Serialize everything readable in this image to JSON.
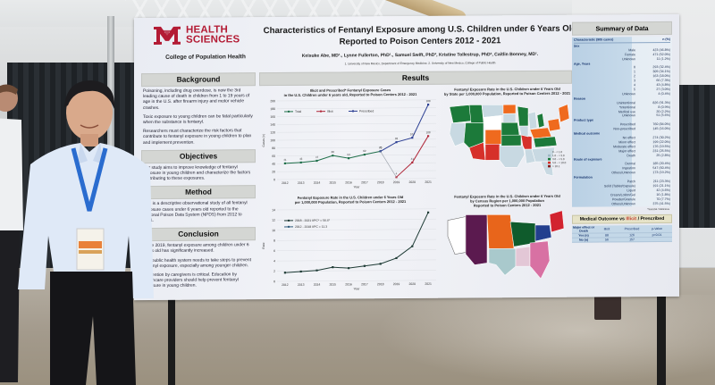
{
  "poster": {
    "institution": {
      "logo_letters": "UNM",
      "name_line1": "HEALTH",
      "name_line2": "SCIENCES",
      "college": "College of Population Health",
      "brand_color": "#b31b34"
    },
    "title_line1": "Characteristics of Fentanyl Exposure among U.S. Children under 6 Years Old",
    "title_line2": "Reported to Poison Centers 2012 - 2021",
    "authors": "Keisuke Abe, MD¹., Lynne Fullerton, PhD¹., Samuel Swift, PhD², Kristine Tollestrup, PhD², Caitlin Bonney, MD¹.",
    "affiliations": "1. University of New Mexico, Department of Emergency Medicine. 2. University of New Mexico, College of Public Health",
    "sections": {
      "background": {
        "heading": "Background",
        "paragraphs": [
          "Poisoning, including drug overdose, is now the 3rd leading cause of death in children from 1 to 19 years of age in the U.S. after firearm injury and motor vehicle crashes.",
          "Toxic exposure to young children can be fatal particularly when the substance is fentanyl.",
          "Researchers must characterize the risk factors that contribute to fentanyl exposure in young children to plan and implement prevention."
        ]
      },
      "objectives": {
        "heading": "Objectives",
        "paragraphs": [
          "Our study aims to improve knowledge of fentanyl exposure in young children and characterize the factors contributing to these exposures."
        ]
      },
      "method": {
        "heading": "Method",
        "paragraphs": [
          "This is a descriptive observational study of all fentanyl exposure cases under 6 years old reported to the National Poison Data System (NPDS) from 2012 to 2021."
        ]
      },
      "conclusion": {
        "heading": "Conclusion",
        "paragraphs": [
          "Since 2019, fentanyl exposure among children under 6 years old has significantly increased.",
          "The public health system needs to take steps to prevent fentanyl exposure, especially among younger children.",
          "Prevention by caregivers is critical. Education by healthcare providers should help prevent fentanyl exposure in young children."
        ]
      },
      "results": {
        "heading": "Results"
      }
    },
    "chart1": {
      "title_line1": "Illicit and Prescribed* Fentanyl Exposure Cases",
      "title_line2": "in the U.S. Children under 6 years old, Reported to Poison Centers 2012 - 2021",
      "footnote": "* Prior to November 2019, NPDS did not distinguish between illicit and prescribed exposures",
      "legend": [
        "Total",
        "Illicit",
        "Prescribed"
      ]
    },
    "chart2": {
      "title_line1": "Fentanyl Exposure Rate in the U.S. Children under 6 Years Old",
      "title_line2": "per 1,000,000 Population, Reported to Poison Centers 2012 - 2021",
      "legend": [
        "2018 - 2021 APC* = 56.4*",
        "2012 - 2018 APC = 11.3"
      ],
      "footnote1": "*APC: Annual Percent Change",
      "footnote2": "* p < 0.05"
    },
    "map1": {
      "title_line1": "Fentanyl Exposure Rate in the U.S. Children under 6 Years Old",
      "title_line2": "by State per 1,000,000 Population, Reported to Poison Centers 2012 - 2021",
      "legend": [
        "0 - < 1.0",
        "1.0 - < 3.0",
        "3.0 - < 5.0",
        "5.0 - < 10.0",
        "> 10.1"
      ],
      "colors": [
        "#c8d9e2",
        "#9fb8c4",
        "#1c7a3a",
        "#ef6a1e",
        "#d6302a"
      ]
    },
    "map2": {
      "title_line1": "Fentanyl Exposure Rate in the U.S. Children under 6 Years Old",
      "title_line2": "by Census Region per 1,000,000 Population",
      "title_line3": "Reported to Poison Centers 2012 - 2021",
      "region_colors": {
        "west": "#5b1a4f",
        "midwest_west": "#e8651b",
        "midwest_east": "#0f5b2c",
        "northeast": "#d2232f",
        "mid_atlantic": "#233f8e",
        "south_central": "#a9c9cc",
        "south_east": "#d871a3",
        "south_mid": "#e3c7d6"
      }
    },
    "summary": {
      "heading": "Summary of Data",
      "col_char": "Characteristic (905 cases)",
      "col_n": "n (%)",
      "groups": [
        {
          "name": "Sex",
          "rows": [
            [
              "Male",
              "423 (46.8%)"
            ],
            [
              "Female",
              "471 (52.0%)"
            ],
            [
              "Unknown",
              "11 (1.2%)"
            ]
          ]
        },
        {
          "name": "Age, Years",
          "rows": [
            [
              "0",
              "293 (32.4%)"
            ],
            [
              "1",
              "309 (34.1%)"
            ],
            [
              "2",
              "163 (18.0%)"
            ],
            [
              "3",
              "66 (7.3%)"
            ],
            [
              "4",
              "43 (4.8%)"
            ],
            [
              "5",
              "27 (3.0%)"
            ],
            [
              "Unknown",
              "4 (0.4%)"
            ]
          ]
        },
        {
          "name": "Reason",
          "rows": [
            [
              "Unintentional",
              "826 (91.3%)"
            ],
            [
              "*Intentional",
              "8 (0.9%)"
            ],
            [
              "Medical use",
              "20 (2.2%)"
            ],
            [
              "Unknown",
              "51 (5.6%)"
            ]
          ]
        },
        {
          "name": "Product type",
          "rows": [
            [
              "Prescribed",
              "760 (84.0%)"
            ],
            [
              "Non-prescribed",
              "145 (16.0%)"
            ]
          ]
        },
        {
          "name": "Medical outcome",
          "rows": [
            [
              "No effect",
              "274 (30.2%)"
            ],
            [
              "Minor effect",
              "199 (22.0%)"
            ],
            [
              "Moderate effect",
              "176 (19.5%)"
            ],
            [
              "Major effect",
              "231 (25.5%)"
            ],
            [
              "Death",
              "25 (2.8%)"
            ]
          ]
        },
        {
          "name": "Route of exposure",
          "rows": [
            [
              "Dermal",
              "185 (20.4%)"
            ],
            [
              "Ingestion",
              "547 (60.4%)"
            ],
            [
              "Others/Unknown",
              "173 (19.2%)"
            ]
          ]
        },
        {
          "name": "Formulation",
          "rows": [
            [
              "Patch",
              "211 (23.3%)"
            ],
            [
              "Solid (Tablet/Capsule)",
              "191 (21.1%)"
            ],
            [
              "Liquid",
              "42 (4.6%)"
            ],
            [
              "Cream/Lotion/Gel",
              "16 (1.8%)"
            ],
            [
              "Powder/Granule",
              "70 (7.7%)"
            ],
            [
              "Others/Unknown",
              "375 (41.5%)"
            ]
          ]
        }
      ],
      "note": "*Suicidal / Malicious"
    },
    "outcome_vs": {
      "heading_prefix": "Medical Outcome vs ",
      "heading_illicit": "Illicit",
      "heading_suffix": " / Prescribed",
      "columns": [
        "Major effect or Death",
        "Illicit",
        "Prescribed",
        "p-Value"
      ],
      "rows": [
        [
          "Yes (n)",
          "88",
          "126",
          "p<0.01"
        ],
        [
          "No (n)",
          "56",
          "157",
          ""
        ]
      ]
    }
  },
  "chart_data": [
    {
      "type": "line",
      "title": "Illicit and Prescribed* Fentanyl Exposure Cases in the U.S. Children under 6 years old, Reported to Poison Centers 2012 - 2021",
      "xlabel": "Year",
      "ylabel": "Cases (n)",
      "ylim": [
        0,
        200
      ],
      "yticks": [
        0,
        20,
        40,
        60,
        80,
        100,
        120,
        140,
        160,
        180,
        200
      ],
      "x": [
        2012,
        2013,
        2014,
        2015,
        2016,
        2017,
        2018,
        2019,
        2020,
        2021
      ],
      "series": [
        {
          "name": "Total",
          "color": "#1f6f4a",
          "values": [
            41,
            43,
            47,
            60,
            53,
            62,
            70,
            null,
            null,
            null
          ]
        },
        {
          "name": "Illicit",
          "color": "#b0283a",
          "values": [
            null,
            null,
            null,
            null,
            null,
            null,
            null,
            4,
            41,
            108
          ]
        },
        {
          "name": "Prescribed",
          "color": "#2c3f93",
          "values": [
            null,
            null,
            null,
            null,
            null,
            null,
            70,
            93,
            104,
            188
          ]
        }
      ],
      "legend_position": "top-left",
      "grid": true
    },
    {
      "type": "line",
      "title": "Fentanyl Exposure Rate in the U.S. Children under 6 Years Old per 1,000,000 Population, Reported to Poison Centers 2012 - 2021",
      "xlabel": "Year",
      "ylabel": "Rate",
      "ylim": [
        0,
        14
      ],
      "yticks": [
        0,
        2,
        4,
        6,
        8,
        10,
        12,
        14
      ],
      "x": [
        2012,
        2013,
        2014,
        2015,
        2016,
        2017,
        2018,
        2019,
        2020,
        2021
      ],
      "series": [
        {
          "name": "Rate",
          "color": "#1e3b35",
          "values": [
            1.7,
            1.9,
            2.1,
            2.7,
            2.5,
            2.9,
            3.3,
            4.4,
            6.7,
            13.3
          ]
        }
      ],
      "annotations": [
        "2018 - 2021 APC* = 56.4*",
        "2012 - 2018 APC = 11.3"
      ],
      "grid": true
    }
  ]
}
